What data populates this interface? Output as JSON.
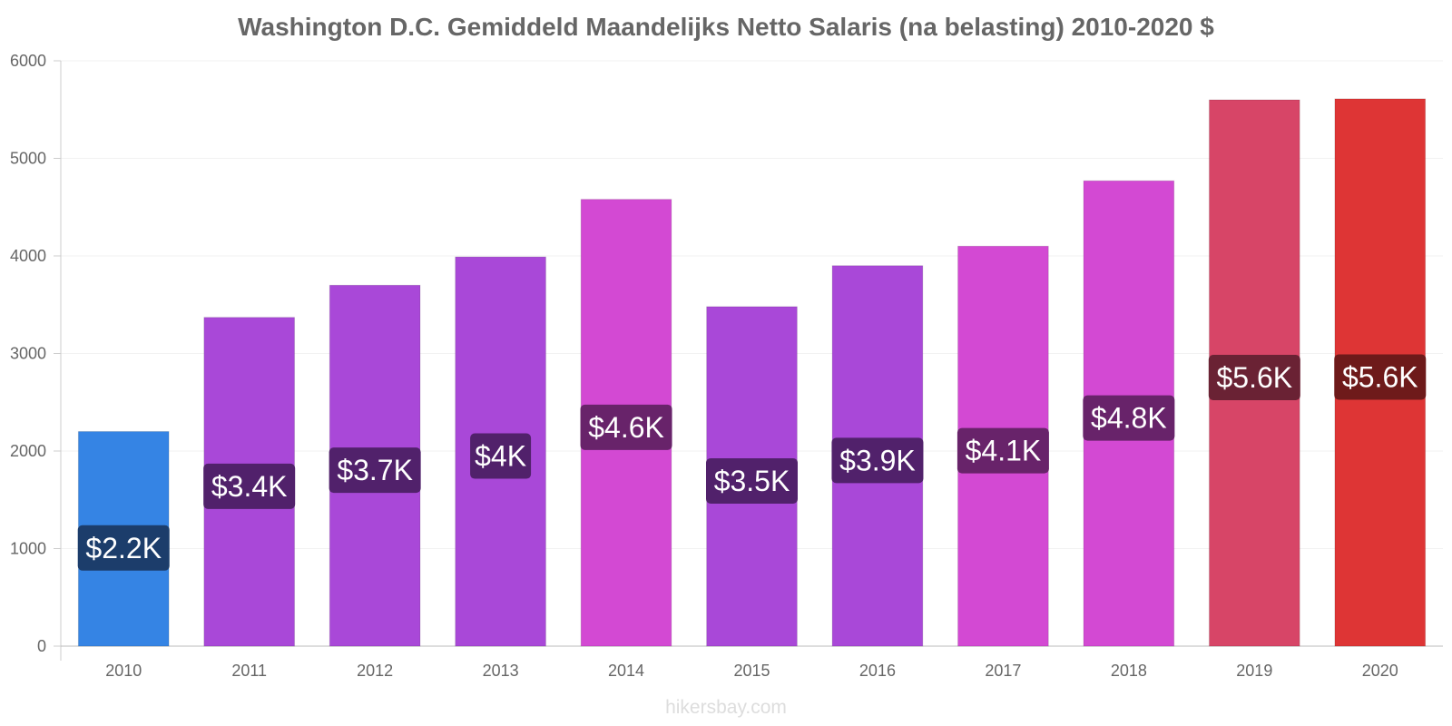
{
  "chart_data": {
    "type": "bar",
    "title": "Washington D.C. Gemiddeld Maandelijks Netto Salaris (na belasting) 2010-2020 $",
    "xlabel": "",
    "ylabel": "",
    "ylim": [
      0,
      6000
    ],
    "yticks": [
      "0",
      "1000",
      "2000",
      "3000",
      "4000",
      "5000",
      "6000"
    ],
    "categories": [
      "2010",
      "2011",
      "2012",
      "2013",
      "2014",
      "2015",
      "2016",
      "2017",
      "2018",
      "2019",
      "2020"
    ],
    "values": [
      2200,
      3370,
      3700,
      3990,
      4580,
      3480,
      3900,
      4100,
      4770,
      5600,
      5610
    ],
    "data_labels": [
      "$2.2K",
      "$3.4K",
      "$3.7K",
      "$4K",
      "$4.6K",
      "$3.5K",
      "$3.9K",
      "$4.1K",
      "$4.8K",
      "$5.6K",
      "$5.6K"
    ],
    "bar_colors": [
      "#3584e4",
      "#a948d8",
      "#a948d8",
      "#a948d8",
      "#d349d3",
      "#a948d8",
      "#a948d8",
      "#d349d3",
      "#d349d3",
      "#d74567",
      "#de3535"
    ],
    "label_bg_colors": [
      "#1c3d6b",
      "#51216b",
      "#51216b",
      "#51216b",
      "#68236a",
      "#51216b",
      "#51216b",
      "#68236a",
      "#68236a",
      "#6a2234",
      "#6e1a1a"
    ],
    "grid": true,
    "legend": "none"
  },
  "watermark": "hikersbay.com"
}
